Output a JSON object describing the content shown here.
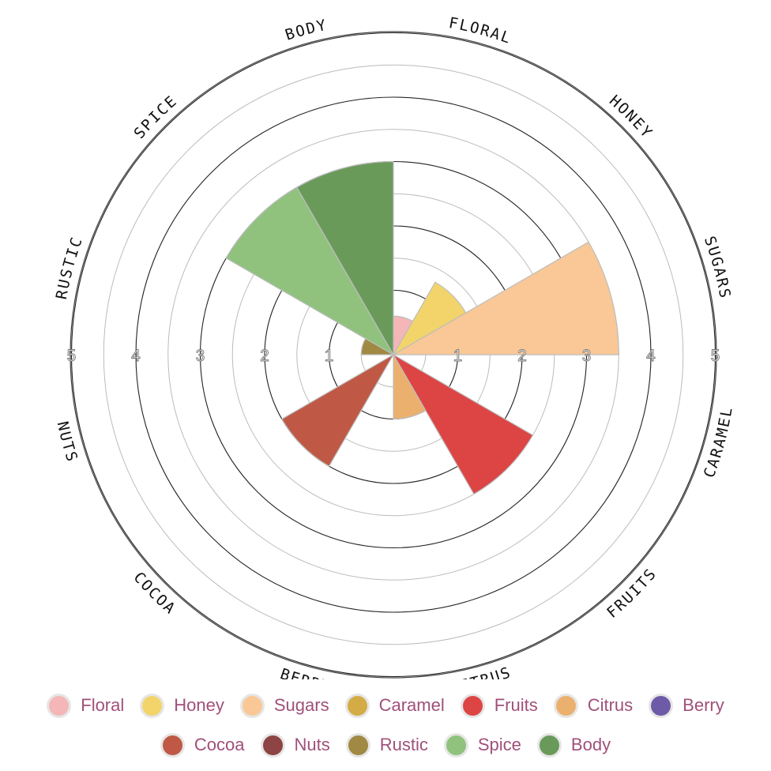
{
  "chart_data": {
    "type": "polar-area",
    "categories": [
      "Floral",
      "Honey",
      "Sugars",
      "Caramel",
      "Fruits",
      "Citrus",
      "Berry",
      "Cocoa",
      "Nuts",
      "Rustic",
      "Spice",
      "Body"
    ],
    "ring_labels": [
      "FLORAL",
      "HONEY",
      "SUGARS",
      "CARAMEL",
      "FRUITS",
      "CITRUS",
      "BERRY",
      "COCOA",
      "NUTS",
      "RUSTIC",
      "SPICE",
      "BODY"
    ],
    "values": [
      0.6,
      1.3,
      3.5,
      0,
      2.5,
      1.0,
      0,
      2.0,
      0,
      0.5,
      3.0,
      3.0
    ],
    "colors": [
      "#f4b6b6",
      "#f2d46b",
      "#f9c896",
      "#d4ac45",
      "#dd4545",
      "#ecb06e",
      "#6e5ba8",
      "#bf5945",
      "#8e4444",
      "#a08942",
      "#90c27e",
      "#6a9a5a"
    ],
    "rlim": [
      0,
      5
    ],
    "ticks": [
      "1",
      "2",
      "3",
      "4",
      "5"
    ],
    "legend_position": "bottom"
  }
}
